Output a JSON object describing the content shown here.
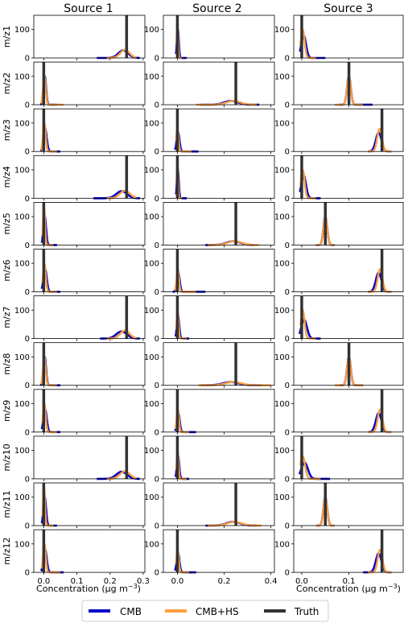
{
  "columns": [
    "Source 1",
    "Source 2",
    "Source 3"
  ],
  "rows": [
    "m/z1",
    "m/z2",
    "m/z3",
    "m/z4",
    "m/z5",
    "m/z6",
    "m/z7",
    "m/z8",
    "m/z9",
    "m/z10",
    "m/z11",
    "m/z12"
  ],
  "xlabel": "Concentration (µg m",
  "xlabel_exp": "−3",
  "xlabel_close": ")",
  "legend": [
    "CMB",
    "CMB+HS",
    "Truth"
  ],
  "colors": {
    "cmb": "#0000cc",
    "cmbhs": "#ffa040",
    "truth": "#333333"
  },
  "chart_data": {
    "type": "line",
    "description_of_series": [
      "CMB",
      "CMB+HS",
      "Truth"
    ],
    "ylim": [
      0,
      150
    ],
    "yticks": [
      0,
      100
    ],
    "axes": [
      {
        "xlim": [
          -0.03,
          0.305
        ],
        "xticks": [
          0.0,
          0.1,
          0.2,
          0.3
        ],
        "xticklabels": [
          "0.0",
          "0.1",
          "0.2",
          "0.3"
        ]
      },
      {
        "xlim": [
          -0.06,
          0.415
        ],
        "xticks": [
          0.0,
          0.2,
          0.4
        ],
        "xticklabels": [
          "0.0",
          "0.2",
          "0.4"
        ]
      },
      {
        "xlim": [
          -0.017,
          0.215
        ],
        "xticks": [
          0.0,
          0.1
        ],
        "xticklabels": [
          "0.0",
          "0.1"
        ]
      }
    ],
    "panels": [
      [
        {
          "truth": 0.25,
          "cmb": {
            "mu": 0.24,
            "sd": 0.015,
            "lo": 0.16,
            "hi": 0.29
          },
          "hs": {
            "mu": 0.245,
            "sd": 0.014,
            "lo": 0.19,
            "hi": 0.28
          }
        },
        {
          "truth": 0.0,
          "cmb": {
            "mu": 0.002,
            "sd": 0.004,
            "lo": -0.006,
            "hi": 0.04
          },
          "hs": {
            "mu": 0.0,
            "sd": 0.003,
            "lo": -0.004,
            "hi": 0.02
          }
        },
        {
          "truth": 0.0,
          "cmb": {
            "mu": 0.004,
            "sd": 0.005,
            "lo": -0.004,
            "hi": 0.05
          },
          "hs": {
            "mu": 0.002,
            "sd": 0.004,
            "lo": -0.003,
            "hi": 0.03
          }
        }
      ],
      [
        {
          "truth": 0.0,
          "cmb": {
            "mu": 0.003,
            "sd": 0.004,
            "lo": -0.01,
            "hi": 0.04
          },
          "hs": {
            "mu": 0.002,
            "sd": 0.004,
            "lo": -0.008,
            "hi": 0.06
          }
        },
        {
          "truth": 0.25,
          "cmb": {
            "mu": 0.23,
            "sd": 0.03,
            "lo": 0.1,
            "hi": 0.35
          },
          "hs": {
            "mu": 0.24,
            "sd": 0.03,
            "lo": 0.08,
            "hi": 0.34
          }
        },
        {
          "truth": 0.1,
          "cmb": {
            "mu": 0.1,
            "sd": 0.004,
            "lo": 0.08,
            "hi": 0.15
          },
          "hs": {
            "mu": 0.1,
            "sd": 0.004,
            "lo": 0.07,
            "hi": 0.13
          }
        }
      ],
      [
        {
          "truth": 0.0,
          "cmb": {
            "mu": 0.004,
            "sd": 0.005,
            "lo": -0.01,
            "hi": 0.05
          },
          "hs": {
            "mu": 0.002,
            "sd": 0.004,
            "lo": -0.008,
            "hi": 0.04
          }
        },
        {
          "truth": 0.0,
          "cmb": {
            "mu": 0.003,
            "sd": 0.006,
            "lo": -0.01,
            "hi": 0.09
          },
          "hs": {
            "mu": 0.0,
            "sd": 0.005,
            "lo": -0.006,
            "hi": 0.06
          }
        },
        {
          "truth": 0.17,
          "cmb": {
            "mu": 0.163,
            "sd": 0.006,
            "lo": 0.14,
            "hi": 0.19
          },
          "hs": {
            "mu": 0.165,
            "sd": 0.005,
            "lo": 0.14,
            "hi": 0.19
          }
        }
      ],
      [
        {
          "truth": 0.25,
          "cmb": {
            "mu": 0.235,
            "sd": 0.016,
            "lo": 0.15,
            "hi": 0.29
          },
          "hs": {
            "mu": 0.245,
            "sd": 0.015,
            "lo": 0.19,
            "hi": 0.28
          }
        },
        {
          "truth": 0.0,
          "cmb": {
            "mu": 0.002,
            "sd": 0.004,
            "lo": -0.006,
            "hi": 0.04
          },
          "hs": {
            "mu": 0.0,
            "sd": 0.003,
            "lo": -0.004,
            "hi": 0.02
          }
        },
        {
          "truth": 0.0,
          "cmb": {
            "mu": 0.004,
            "sd": 0.005,
            "lo": -0.004,
            "hi": 0.04
          },
          "hs": {
            "mu": 0.002,
            "sd": 0.004,
            "lo": -0.003,
            "hi": 0.03
          }
        }
      ],
      [
        {
          "truth": 0.0,
          "cmb": {
            "mu": 0.003,
            "sd": 0.004,
            "lo": -0.006,
            "hi": 0.04
          },
          "hs": {
            "mu": 0.001,
            "sd": 0.003,
            "lo": -0.004,
            "hi": 0.03
          }
        },
        {
          "truth": 0.25,
          "cmb": {
            "mu": 0.24,
            "sd": 0.03,
            "lo": 0.12,
            "hi": 0.33
          },
          "hs": {
            "mu": 0.245,
            "sd": 0.03,
            "lo": 0.13,
            "hi": 0.35
          }
        },
        {
          "truth": 0.05,
          "cmb": {
            "mu": 0.05,
            "sd": 0.004,
            "lo": 0.03,
            "hi": 0.07
          },
          "hs": {
            "mu": 0.05,
            "sd": 0.004,
            "lo": 0.03,
            "hi": 0.07
          }
        }
      ],
      [
        {
          "truth": 0.0,
          "cmb": {
            "mu": 0.004,
            "sd": 0.005,
            "lo": -0.006,
            "hi": 0.05
          },
          "hs": {
            "mu": 0.002,
            "sd": 0.004,
            "lo": -0.004,
            "hi": 0.04
          }
        },
        {
          "truth": 0.0,
          "cmb": {
            "mu": 0.004,
            "sd": 0.006,
            "lo": -0.02,
            "hi": 0.12
          },
          "hs": {
            "mu": 0.002,
            "sd": 0.005,
            "lo": -0.01,
            "hi": 0.08
          }
        },
        {
          "truth": 0.17,
          "cmb": {
            "mu": 0.163,
            "sd": 0.006,
            "lo": 0.14,
            "hi": 0.19
          },
          "hs": {
            "mu": 0.166,
            "sd": 0.005,
            "lo": 0.14,
            "hi": 0.19
          }
        }
      ],
      [
        {
          "truth": 0.25,
          "cmb": {
            "mu": 0.235,
            "sd": 0.016,
            "lo": 0.17,
            "hi": 0.29
          },
          "hs": {
            "mu": 0.245,
            "sd": 0.014,
            "lo": 0.19,
            "hi": 0.28
          }
        },
        {
          "truth": 0.0,
          "cmb": {
            "mu": 0.003,
            "sd": 0.005,
            "lo": -0.008,
            "hi": 0.05
          },
          "hs": {
            "mu": 0.001,
            "sd": 0.004,
            "lo": -0.005,
            "hi": 0.04
          }
        },
        {
          "truth": 0.0,
          "cmb": {
            "mu": 0.005,
            "sd": 0.006,
            "lo": -0.005,
            "hi": 0.04
          },
          "hs": {
            "mu": 0.002,
            "sd": 0.004,
            "lo": -0.003,
            "hi": 0.03
          }
        }
      ],
      [
        {
          "truth": 0.0,
          "cmb": {
            "mu": 0.003,
            "sd": 0.004,
            "lo": -0.01,
            "hi": 0.05
          },
          "hs": {
            "mu": 0.002,
            "sd": 0.004,
            "lo": -0.008,
            "hi": 0.04
          }
        },
        {
          "truth": 0.25,
          "cmb": {
            "mu": 0.23,
            "sd": 0.035,
            "lo": 0.1,
            "hi": 0.36
          },
          "hs": {
            "mu": 0.24,
            "sd": 0.034,
            "lo": 0.09,
            "hi": 0.4
          }
        },
        {
          "truth": 0.1,
          "cmb": {
            "mu": 0.1,
            "sd": 0.004,
            "lo": 0.08,
            "hi": 0.13
          },
          "hs": {
            "mu": 0.1,
            "sd": 0.004,
            "lo": 0.07,
            "hi": 0.13
          }
        }
      ],
      [
        {
          "truth": 0.0,
          "cmb": {
            "mu": 0.004,
            "sd": 0.005,
            "lo": -0.006,
            "hi": 0.05
          },
          "hs": {
            "mu": 0.002,
            "sd": 0.004,
            "lo": -0.004,
            "hi": 0.04
          }
        },
        {
          "truth": 0.0,
          "cmb": {
            "mu": 0.004,
            "sd": 0.006,
            "lo": -0.01,
            "hi": 0.08
          },
          "hs": {
            "mu": 0.002,
            "sd": 0.005,
            "lo": -0.008,
            "hi": 0.05
          }
        },
        {
          "truth": 0.17,
          "cmb": {
            "mu": 0.163,
            "sd": 0.006,
            "lo": 0.14,
            "hi": 0.19
          },
          "hs": {
            "mu": 0.166,
            "sd": 0.005,
            "lo": 0.14,
            "hi": 0.19
          }
        }
      ],
      [
        {
          "truth": 0.25,
          "cmb": {
            "mu": 0.235,
            "sd": 0.016,
            "lo": 0.16,
            "hi": 0.29
          },
          "hs": {
            "mu": 0.245,
            "sd": 0.015,
            "lo": 0.19,
            "hi": 0.28
          }
        },
        {
          "truth": 0.0,
          "cmb": {
            "mu": 0.003,
            "sd": 0.005,
            "lo": -0.008,
            "hi": 0.05
          },
          "hs": {
            "mu": 0.001,
            "sd": 0.004,
            "lo": -0.005,
            "hi": 0.04
          }
        },
        {
          "truth": 0.0,
          "cmb": {
            "mu": 0.006,
            "sd": 0.007,
            "lo": -0.005,
            "hi": 0.06
          },
          "hs": {
            "mu": 0.002,
            "sd": 0.005,
            "lo": -0.003,
            "hi": 0.04
          }
        }
      ],
      [
        {
          "truth": 0.0,
          "cmb": {
            "mu": 0.003,
            "sd": 0.004,
            "lo": -0.006,
            "hi": 0.04
          },
          "hs": {
            "mu": 0.001,
            "sd": 0.003,
            "lo": -0.004,
            "hi": 0.03
          }
        },
        {
          "truth": 0.25,
          "cmb": {
            "mu": 0.24,
            "sd": 0.03,
            "lo": 0.12,
            "hi": 0.34
          },
          "hs": {
            "mu": 0.245,
            "sd": 0.03,
            "lo": 0.13,
            "hi": 0.36
          }
        },
        {
          "truth": 0.05,
          "cmb": {
            "mu": 0.05,
            "sd": 0.004,
            "lo": 0.03,
            "hi": 0.07
          },
          "hs": {
            "mu": 0.05,
            "sd": 0.004,
            "lo": 0.03,
            "hi": 0.07
          }
        }
      ],
      [
        {
          "truth": 0.0,
          "cmb": {
            "mu": 0.004,
            "sd": 0.005,
            "lo": -0.008,
            "hi": 0.06
          },
          "hs": {
            "mu": 0.002,
            "sd": 0.004,
            "lo": -0.006,
            "hi": 0.05
          }
        },
        {
          "truth": 0.0,
          "cmb": {
            "mu": 0.003,
            "sd": 0.006,
            "lo": -0.01,
            "hi": 0.08
          },
          "hs": {
            "mu": 0.001,
            "sd": 0.005,
            "lo": -0.006,
            "hi": 0.05
          }
        },
        {
          "truth": 0.17,
          "cmb": {
            "mu": 0.163,
            "sd": 0.006,
            "lo": 0.13,
            "hi": 0.19
          },
          "hs": {
            "mu": 0.166,
            "sd": 0.005,
            "lo": 0.14,
            "hi": 0.19
          }
        }
      ]
    ]
  }
}
